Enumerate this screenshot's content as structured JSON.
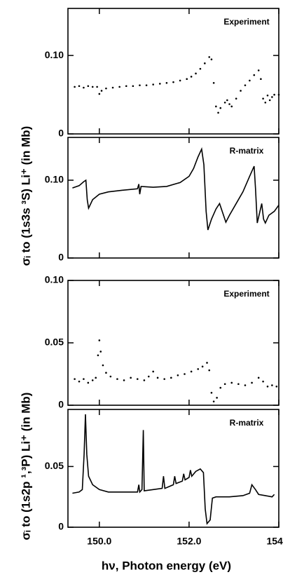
{
  "chart_data": [
    {
      "type": "scatter",
      "annotation": "Experiment",
      "y_label": "σᵢ to (1s3s ³S) Li⁺ (in Mb)",
      "color": "#000000",
      "xlim": [
        149.3,
        154.0
      ],
      "ylim": [
        0,
        0.16
      ],
      "yticks": [
        0,
        {
          "value": 0.1,
          "label": "0.10"
        }
      ],
      "x": [
        149.45,
        149.55,
        149.65,
        149.75,
        149.85,
        149.95,
        150.0,
        150.05,
        150.15,
        150.3,
        150.45,
        150.6,
        150.75,
        150.9,
        151.05,
        151.2,
        151.35,
        151.5,
        151.65,
        151.8,
        151.95,
        152.05,
        152.15,
        152.25,
        152.35,
        152.45,
        152.5,
        152.55,
        152.6,
        152.65,
        152.7,
        152.8,
        152.85,
        152.9,
        152.95,
        153.05,
        153.15,
        153.25,
        153.35,
        153.45,
        153.55,
        153.6,
        153.65,
        153.7,
        153.75,
        153.8,
        153.85,
        153.9,
        154.0
      ],
      "values": [
        0.06,
        0.061,
        0.059,
        0.061,
        0.06,
        0.06,
        0.051,
        0.055,
        0.058,
        0.059,
        0.06,
        0.061,
        0.061,
        0.062,
        0.062,
        0.063,
        0.064,
        0.065,
        0.066,
        0.068,
        0.07,
        0.073,
        0.077,
        0.083,
        0.09,
        0.098,
        0.095,
        0.065,
        0.035,
        0.027,
        0.033,
        0.04,
        0.043,
        0.038,
        0.035,
        0.045,
        0.055,
        0.062,
        0.068,
        0.075,
        0.081,
        0.07,
        0.045,
        0.04,
        0.049,
        0.043,
        0.047,
        0.05,
        0.05
      ]
    },
    {
      "type": "line",
      "annotation": "R-matrix",
      "color": "#000000",
      "xlim": [
        149.3,
        154.0
      ],
      "ylim": [
        0,
        0.155
      ],
      "yticks": [
        0,
        {
          "value": 0.1,
          "label": "0.10"
        }
      ],
      "x": [
        149.4,
        149.55,
        149.65,
        149.7,
        149.73,
        149.76,
        149.85,
        150.0,
        150.2,
        150.5,
        150.85,
        150.88,
        150.9,
        150.93,
        151.2,
        151.5,
        151.8,
        152.0,
        152.1,
        152.2,
        152.28,
        152.33,
        152.38,
        152.42,
        152.5,
        152.6,
        152.68,
        152.75,
        152.82,
        152.9,
        153.05,
        153.2,
        153.35,
        153.45,
        153.48,
        153.52,
        153.58,
        153.62,
        153.66,
        153.7,
        153.78,
        153.9,
        154.0
      ],
      "values": [
        0.09,
        0.093,
        0.098,
        0.1,
        0.075,
        0.064,
        0.075,
        0.082,
        0.085,
        0.087,
        0.089,
        0.095,
        0.082,
        0.092,
        0.091,
        0.092,
        0.097,
        0.105,
        0.115,
        0.13,
        0.14,
        0.12,
        0.06,
        0.036,
        0.05,
        0.063,
        0.07,
        0.058,
        0.046,
        0.055,
        0.07,
        0.085,
        0.105,
        0.118,
        0.09,
        0.045,
        0.06,
        0.07,
        0.05,
        0.045,
        0.055,
        0.06,
        0.068
      ]
    },
    {
      "type": "scatter",
      "annotation": "Experiment",
      "y_label": "σᵢ to (1s2p ¹,³P) Li⁺ (in Mb)",
      "color": "#000000",
      "xlim": [
        149.3,
        154.0
      ],
      "ylim": [
        0,
        0.1
      ],
      "yticks": [
        0,
        0.05,
        {
          "value": 0.1,
          "label": "0.10"
        }
      ],
      "x": [
        149.45,
        149.55,
        149.65,
        149.75,
        149.85,
        149.92,
        149.97,
        150.0,
        150.03,
        150.08,
        150.15,
        150.25,
        150.4,
        150.55,
        150.7,
        150.85,
        151.0,
        151.1,
        151.2,
        151.3,
        151.45,
        151.6,
        151.75,
        151.9,
        152.05,
        152.2,
        152.3,
        152.4,
        152.45,
        152.5,
        152.55,
        152.62,
        152.7,
        152.8,
        152.95,
        153.1,
        153.25,
        153.4,
        153.55,
        153.65,
        153.75,
        153.85,
        153.95
      ],
      "values": [
        0.021,
        0.019,
        0.021,
        0.018,
        0.02,
        0.022,
        0.04,
        0.052,
        0.043,
        0.032,
        0.026,
        0.023,
        0.021,
        0.02,
        0.022,
        0.021,
        0.02,
        0.023,
        0.027,
        0.022,
        0.021,
        0.022,
        0.024,
        0.025,
        0.027,
        0.029,
        0.031,
        0.034,
        0.028,
        0.01,
        0.003,
        0.006,
        0.014,
        0.017,
        0.018,
        0.017,
        0.016,
        0.018,
        0.022,
        0.019,
        0.015,
        0.016,
        0.015
      ]
    },
    {
      "type": "line",
      "annotation": "R-matrix",
      "x_label": "hν, Photon energy (eV)",
      "color": "#000000",
      "xlim": [
        149.3,
        154.0
      ],
      "ylim": [
        0,
        0.097
      ],
      "yticks": [
        0,
        0.05
      ],
      "xticks": [
        {
          "value": 150,
          "label": "150.0"
        },
        {
          "value": 152,
          "label": "152.0"
        },
        {
          "value": 154,
          "label": "154.0"
        }
      ],
      "x": [
        149.4,
        149.55,
        149.62,
        149.66,
        149.69,
        149.72,
        149.76,
        149.85,
        150.0,
        150.2,
        150.5,
        150.85,
        150.88,
        150.9,
        150.95,
        150.98,
        151.0,
        151.2,
        151.4,
        151.43,
        151.46,
        151.65,
        151.68,
        151.71,
        151.85,
        151.88,
        151.91,
        152.0,
        152.03,
        152.06,
        152.15,
        152.25,
        152.32,
        152.36,
        152.4,
        152.47,
        152.52,
        152.6,
        152.9,
        153.2,
        153.35,
        153.4,
        153.48,
        153.55,
        153.7,
        153.85,
        153.9
      ],
      "values": [
        0.028,
        0.029,
        0.031,
        0.06,
        0.093,
        0.06,
        0.042,
        0.035,
        0.031,
        0.029,
        0.029,
        0.029,
        0.035,
        0.029,
        0.031,
        0.08,
        0.03,
        0.031,
        0.032,
        0.042,
        0.032,
        0.035,
        0.042,
        0.036,
        0.038,
        0.044,
        0.039,
        0.041,
        0.047,
        0.042,
        0.046,
        0.048,
        0.045,
        0.015,
        0.003,
        0.006,
        0.024,
        0.025,
        0.025,
        0.026,
        0.028,
        0.035,
        0.031,
        0.027,
        0.026,
        0.025,
        0.027
      ]
    }
  ]
}
